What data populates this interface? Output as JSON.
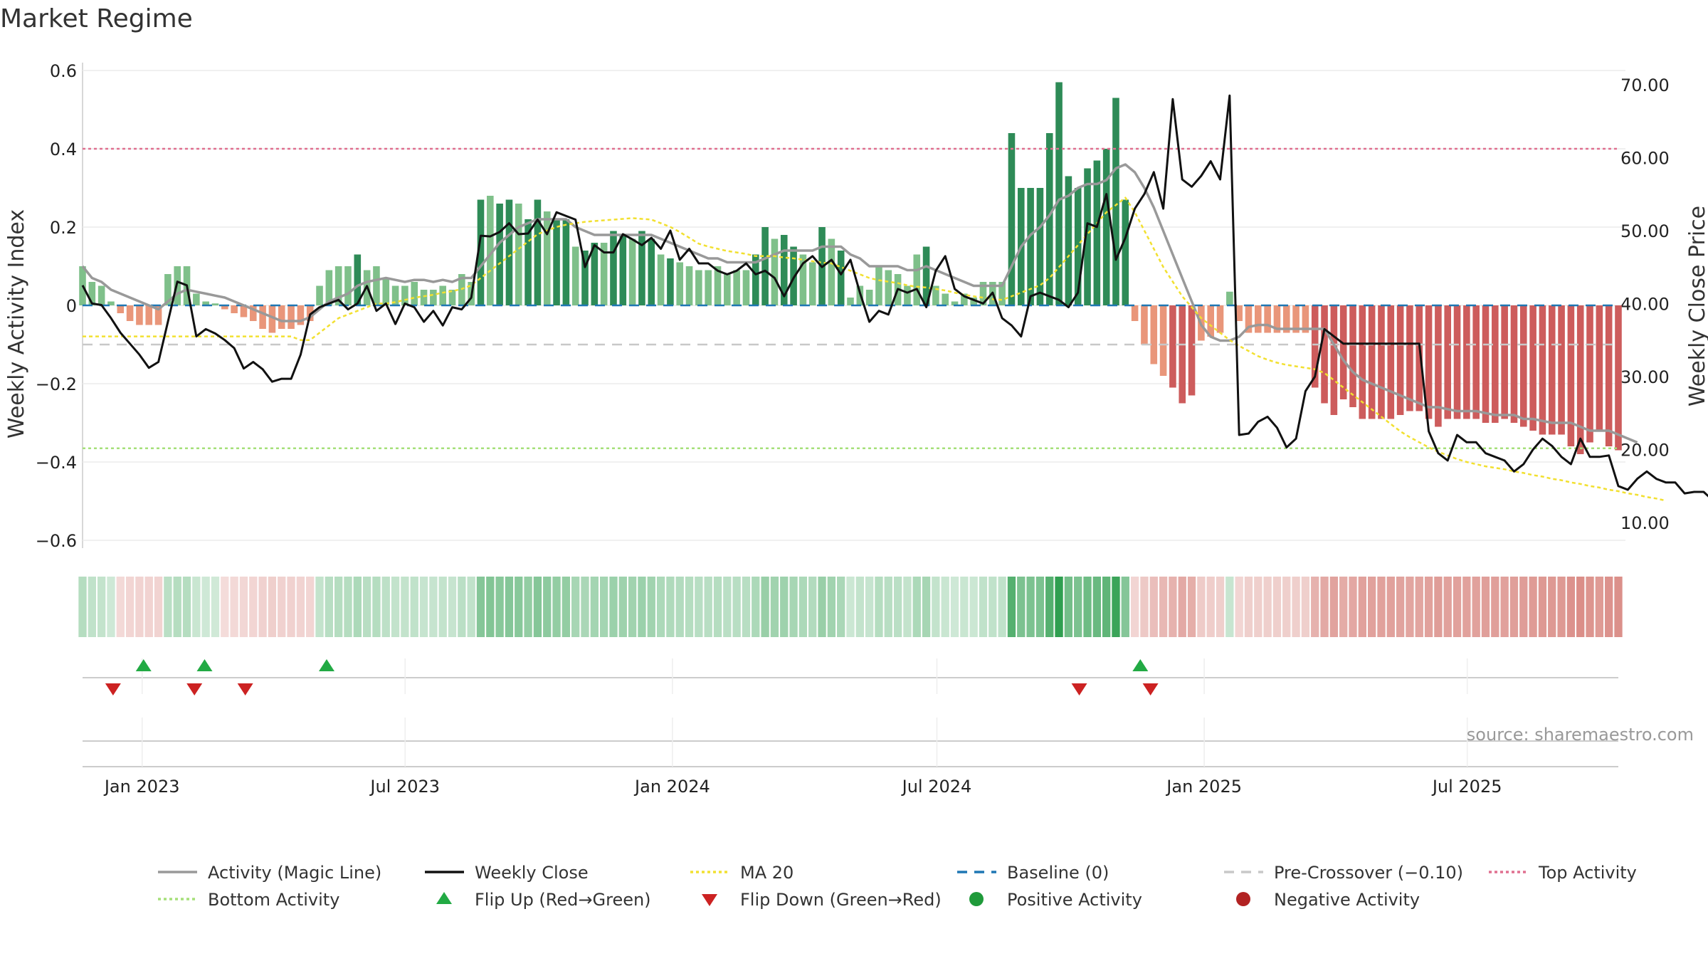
{
  "chart_data": {
    "type": "bar",
    "title": "Market Regime",
    "y_left_label": "Weekly Activity Index",
    "y_right_label": "Weekly Close Price",
    "y_left_range": [
      -0.62,
      0.62
    ],
    "y_right_range": [
      10,
      70
    ],
    "y_left_ticks": [
      "0.6",
      "0.4",
      "0.2",
      "0",
      "−0.2",
      "−0.4",
      "−0.6"
    ],
    "y_left_tick_values": [
      0.6,
      0.4,
      0.2,
      0,
      -0.2,
      -0.4,
      -0.6
    ],
    "y_right_ticks": [
      "70.00",
      "60.00",
      "50.00",
      "40.00",
      "30.00",
      "20.00",
      "10.00"
    ],
    "y_right_tick_values": [
      70,
      60,
      50,
      40,
      30,
      20,
      10
    ],
    "x_start": "2022-11-21",
    "x_end": "2025-10-13",
    "x_tick_labels": [
      "Jan 2023",
      "Jul 2023",
      "Jan 2024",
      "Jul 2024",
      "Jan 2025",
      "Jul 2025"
    ],
    "x_tick_dates": [
      "2023-01-01",
      "2023-07-01",
      "2024-01-01",
      "2024-07-01",
      "2025-01-01",
      "2025-07-01"
    ],
    "top_activity": 0.4,
    "bottom_activity": -0.365,
    "pre_crossover": -0.1,
    "baseline": 0,
    "activity_weekly": [
      0.1,
      0.06,
      0.05,
      0.01,
      -0.02,
      -0.04,
      -0.05,
      -0.05,
      -0.05,
      0.08,
      0.1,
      0.1,
      0.03,
      0.01,
      0.005,
      -0.01,
      -0.02,
      -0.03,
      -0.04,
      -0.06,
      -0.07,
      -0.06,
      -0.06,
      -0.05,
      -0.04,
      0.05,
      0.09,
      0.1,
      0.1,
      0.13,
      0.09,
      0.1,
      0.07,
      0.05,
      0.05,
      0.06,
      0.04,
      0.04,
      0.05,
      0.04,
      0.08,
      0.06,
      0.27,
      0.28,
      0.26,
      0.27,
      0.26,
      0.22,
      0.27,
      0.24,
      0.22,
      0.22,
      0.15,
      0.14,
      0.16,
      0.16,
      0.19,
      0.18,
      0.17,
      0.19,
      0.17,
      0.13,
      0.12,
      0.11,
      0.1,
      0.09,
      0.09,
      0.1,
      0.08,
      0.09,
      0.09,
      0.13,
      0.2,
      0.17,
      0.18,
      0.15,
      0.13,
      0.11,
      0.2,
      0.17,
      0.14,
      0.02,
      0.05,
      0.04,
      0.1,
      0.09,
      0.08,
      0.05,
      0.13,
      0.15,
      0.05,
      0.03,
      0.01,
      0.03,
      0.02,
      0.06,
      0.06,
      0.06,
      0.44,
      0.3,
      0.3,
      0.3,
      0.44,
      0.57,
      0.33,
      0.3,
      0.35,
      0.37,
      0.4,
      0.53,
      0.27,
      -0.04,
      -0.1,
      -0.15,
      -0.18,
      -0.21,
      -0.25,
      -0.23,
      -0.09,
      -0.08,
      -0.07,
      0.035,
      -0.04,
      -0.07,
      -0.07,
      -0.07,
      -0.07,
      -0.07,
      -0.07,
      -0.07,
      -0.21,
      -0.25,
      -0.28,
      -0.24,
      -0.26,
      -0.29,
      -0.29,
      -0.29,
      -0.29,
      -0.28,
      -0.27,
      -0.27,
      -0.29,
      -0.31,
      -0.29,
      -0.29,
      -0.29,
      -0.29,
      -0.3,
      -0.3,
      -0.29,
      -0.3,
      -0.31,
      -0.32,
      -0.33,
      -0.33,
      -0.33,
      -0.36,
      -0.38,
      -0.35,
      -0.32,
      -0.36,
      -0.37
    ],
    "close_weekly": [
      42.5,
      40,
      39.8,
      38,
      36,
      34.5,
      33,
      31.2,
      32,
      37.5,
      43,
      42.5,
      35.5,
      36.5,
      35.9,
      35,
      33.9,
      31.1,
      32,
      31,
      29.3,
      29.7,
      29.7,
      33,
      38.5,
      39.5,
      40,
      40.5,
      39.2,
      40,
      42.4,
      39,
      40,
      37.2,
      40,
      39.5,
      37.5,
      39,
      37,
      39.5,
      39.2,
      40.8,
      49.3,
      49.2,
      49.8,
      51,
      49.5,
      49.6,
      51.5,
      49.5,
      52.5,
      52,
      51.5,
      45,
      48,
      47,
      47,
      49.5,
      48.8,
      48,
      49,
      47.5,
      50,
      46,
      47.5,
      45.5,
      45.5,
      44.5,
      44,
      44.5,
      45.5,
      44,
      44.5,
      43.5,
      41,
      43.5,
      45.5,
      46.5,
      45,
      46,
      44,
      46,
      41.5,
      37.5,
      39,
      38.5,
      42,
      41.5,
      42,
      39.5,
      44.5,
      46.5,
      42,
      41,
      40.5,
      40,
      41.5,
      38,
      37,
      35.5,
      41,
      41.5,
      41,
      40.5,
      39.5,
      41.5,
      51,
      50.5,
      55,
      46,
      49,
      53,
      55,
      58,
      53,
      68,
      57,
      56,
      57.5,
      59.5,
      57,
      68.5,
      22,
      22.2,
      23.8,
      24.5,
      23,
      20.3,
      21.5,
      28,
      30,
      36.5,
      35.5,
      34.5,
      34.5,
      34.5,
      34.5,
      34.5,
      34.5,
      34.5,
      34.5,
      34.5,
      22.5,
      19.5,
      18.5,
      22,
      21,
      21,
      19.5,
      19,
      18.5,
      17,
      18,
      20,
      21.5,
      20.5,
      19,
      18,
      21.5,
      19,
      19,
      19.2,
      15,
      14.5,
      16,
      17,
      16,
      15.5,
      15.5,
      14,
      14.2,
      14.2,
      13,
      15.5,
      15.5,
      14,
      13.5
    ],
    "magic_line_weekly": [
      0.1,
      0.07,
      0.06,
      0.04,
      0.03,
      0.02,
      0.01,
      0.0,
      -0.01,
      0.01,
      0.03,
      0.04,
      0.035,
      0.03,
      0.025,
      0.02,
      0.01,
      0.0,
      -0.01,
      -0.02,
      -0.03,
      -0.04,
      -0.04,
      -0.04,
      -0.03,
      -0.01,
      0.01,
      0.02,
      0.03,
      0.05,
      0.06,
      0.065,
      0.07,
      0.065,
      0.06,
      0.065,
      0.065,
      0.06,
      0.065,
      0.06,
      0.07,
      0.07,
      0.1,
      0.13,
      0.16,
      0.18,
      0.2,
      0.21,
      0.22,
      0.22,
      0.22,
      0.22,
      0.2,
      0.19,
      0.18,
      0.18,
      0.18,
      0.18,
      0.18,
      0.18,
      0.18,
      0.17,
      0.16,
      0.15,
      0.14,
      0.13,
      0.12,
      0.12,
      0.11,
      0.11,
      0.11,
      0.11,
      0.12,
      0.13,
      0.14,
      0.14,
      0.14,
      0.14,
      0.15,
      0.15,
      0.15,
      0.13,
      0.12,
      0.1,
      0.1,
      0.1,
      0.1,
      0.09,
      0.09,
      0.1,
      0.09,
      0.08,
      0.07,
      0.06,
      0.05,
      0.05,
      0.05,
      0.05,
      0.1,
      0.15,
      0.18,
      0.2,
      0.23,
      0.27,
      0.28,
      0.3,
      0.31,
      0.31,
      0.32,
      0.35,
      0.36,
      0.34,
      0.3,
      0.25,
      0.19,
      0.13,
      0.07,
      0.01,
      -0.05,
      -0.08,
      -0.09,
      -0.09,
      -0.08,
      -0.055,
      -0.05,
      -0.05,
      -0.06,
      -0.06,
      -0.06,
      -0.06,
      -0.06,
      -0.06,
      -0.1,
      -0.14,
      -0.17,
      -0.19,
      -0.2,
      -0.21,
      -0.22,
      -0.23,
      -0.24,
      -0.25,
      -0.26,
      -0.26,
      -0.265,
      -0.27,
      -0.27,
      -0.27,
      -0.275,
      -0.28,
      -0.28,
      -0.28,
      -0.29,
      -0.29,
      -0.295,
      -0.3,
      -0.3,
      -0.3,
      -0.31,
      -0.32,
      -0.32,
      -0.32,
      -0.33,
      -0.34,
      -0.35
    ],
    "ma20_weekly": [
      35.5,
      35.5,
      35.5,
      35.5,
      35.5,
      35.5,
      35.5,
      35.5,
      35.5,
      35.5,
      35.5,
      35.5,
      35.5,
      35.5,
      35.5,
      35.5,
      35.5,
      35.5,
      35.5,
      35.5,
      35.5,
      35.5,
      35.5,
      35,
      35,
      36,
      37,
      38,
      38.5,
      39,
      39.5,
      40,
      40,
      40.2,
      40.5,
      40.8,
      41,
      41.2,
      41.5,
      41.7,
      42,
      42.5,
      43.5,
      44.5,
      45.5,
      46.5,
      47.5,
      48.5,
      49.5,
      50,
      50.5,
      50.8,
      51,
      51.2,
      51.3,
      51.4,
      51.5,
      51.6,
      51.7,
      51.6,
      51.5,
      51,
      50.5,
      49.8,
      49,
      48.2,
      47.8,
      47.5,
      47.2,
      47,
      46.8,
      46.5,
      46.5,
      46.5,
      46.3,
      46.2,
      46,
      45.8,
      45.6,
      45.5,
      45,
      44.5,
      44,
      43.5,
      43.2,
      43,
      42.8,
      42.5,
      42.3,
      42.2,
      42,
      41.8,
      41.5,
      41.2,
      41,
      40.8,
      40.6,
      40.5,
      41,
      41.5,
      42,
      42.5,
      43.5,
      45,
      46.5,
      48,
      49.5,
      51,
      52.5,
      53.5,
      54.5,
      52.5,
      50,
      47.5,
      45,
      43,
      41,
      39.5,
      38,
      37,
      36,
      35,
      34.2,
      33.5,
      32.8,
      32.3,
      31.9,
      31.6,
      31.4,
      31.2,
      31,
      30.5,
      29.5,
      28.5,
      27.5,
      26.5,
      25.5,
      24.5,
      23.5,
      22.5,
      21.7,
      21,
      20.3,
      19.7,
      19.2,
      18.7,
      18.3,
      18,
      17.7,
      17.5,
      17.3,
      17,
      16.8,
      16.5,
      16.3,
      16,
      15.8,
      15.5,
      15.3,
      15,
      14.8,
      14.5,
      14.3,
      14,
      13.8,
      13.5,
      13.3,
      13
    ],
    "flip_up_dates": [
      "2023-01-02",
      "2023-02-13",
      "2023-05-08",
      "2024-11-18"
    ],
    "flip_down_dates": [
      "2022-12-12",
      "2023-02-06",
      "2023-03-13",
      "2024-10-07",
      "2024-11-25"
    ],
    "colors": {
      "pos_strong": "#2e8b57",
      "pos_weak": "#7fc08a",
      "neg_strong": "#cd5c5c",
      "neg_weak": "#e9967a",
      "magic_line": "#999999",
      "close": "#111111",
      "ma20": "#f2e030",
      "baseline": "#1f77b4",
      "pre_crossover": "#c8c8c8",
      "top_activity": "#e07090",
      "bottom_activity": "#a6e07a",
      "flip_up": "#22aa44",
      "flip_down": "#cc2222",
      "positive_activity": "#1f9a3a",
      "negative_activity": "#b22222"
    }
  },
  "legend": [
    {
      "label": "Activity (Magic Line)",
      "kind": "line",
      "color": "#999999",
      "dash": "",
      "icon": "gray-line"
    },
    {
      "label": "Weekly Close",
      "kind": "line",
      "color": "#111111",
      "dash": "",
      "icon": "black-line"
    },
    {
      "label": "MA 20",
      "kind": "line",
      "color": "#f2e030",
      "dash": "4,4",
      "icon": "yellow-dashed-line"
    },
    {
      "label": "Baseline (0)",
      "kind": "line",
      "color": "#1f77b4",
      "dash": "14,10",
      "icon": "blue-dashed-line"
    },
    {
      "label": "Pre-Crossover (−0.10)",
      "kind": "line",
      "color": "#c8c8c8",
      "dash": "14,10",
      "icon": "gray-dashed-line"
    },
    {
      "label": "Top Activity",
      "kind": "line",
      "color": "#e07090",
      "dash": "4,4",
      "icon": "pink-dotted-line"
    },
    {
      "label": "Bottom Activity",
      "kind": "line",
      "color": "#a6e07a",
      "dash": "4,4",
      "icon": "green-dotted-line"
    },
    {
      "label": "Flip Up (Red→Green)",
      "kind": "tri-up",
      "color": "#22aa44",
      "dash": "",
      "icon": "triangle-up-icon"
    },
    {
      "label": "Flip Down (Green→Red)",
      "kind": "tri-down",
      "color": "#cc2222",
      "dash": "",
      "icon": "triangle-down-icon"
    },
    {
      "label": "Positive Activity",
      "kind": "dot",
      "color": "#1f9a3a",
      "dash": "",
      "icon": "green-circle-icon"
    },
    {
      "label": "Negative Activity",
      "kind": "dot",
      "color": "#b22222",
      "dash": "",
      "icon": "red-circle-icon"
    }
  ],
  "source_text": "source: sharemaestro.com"
}
